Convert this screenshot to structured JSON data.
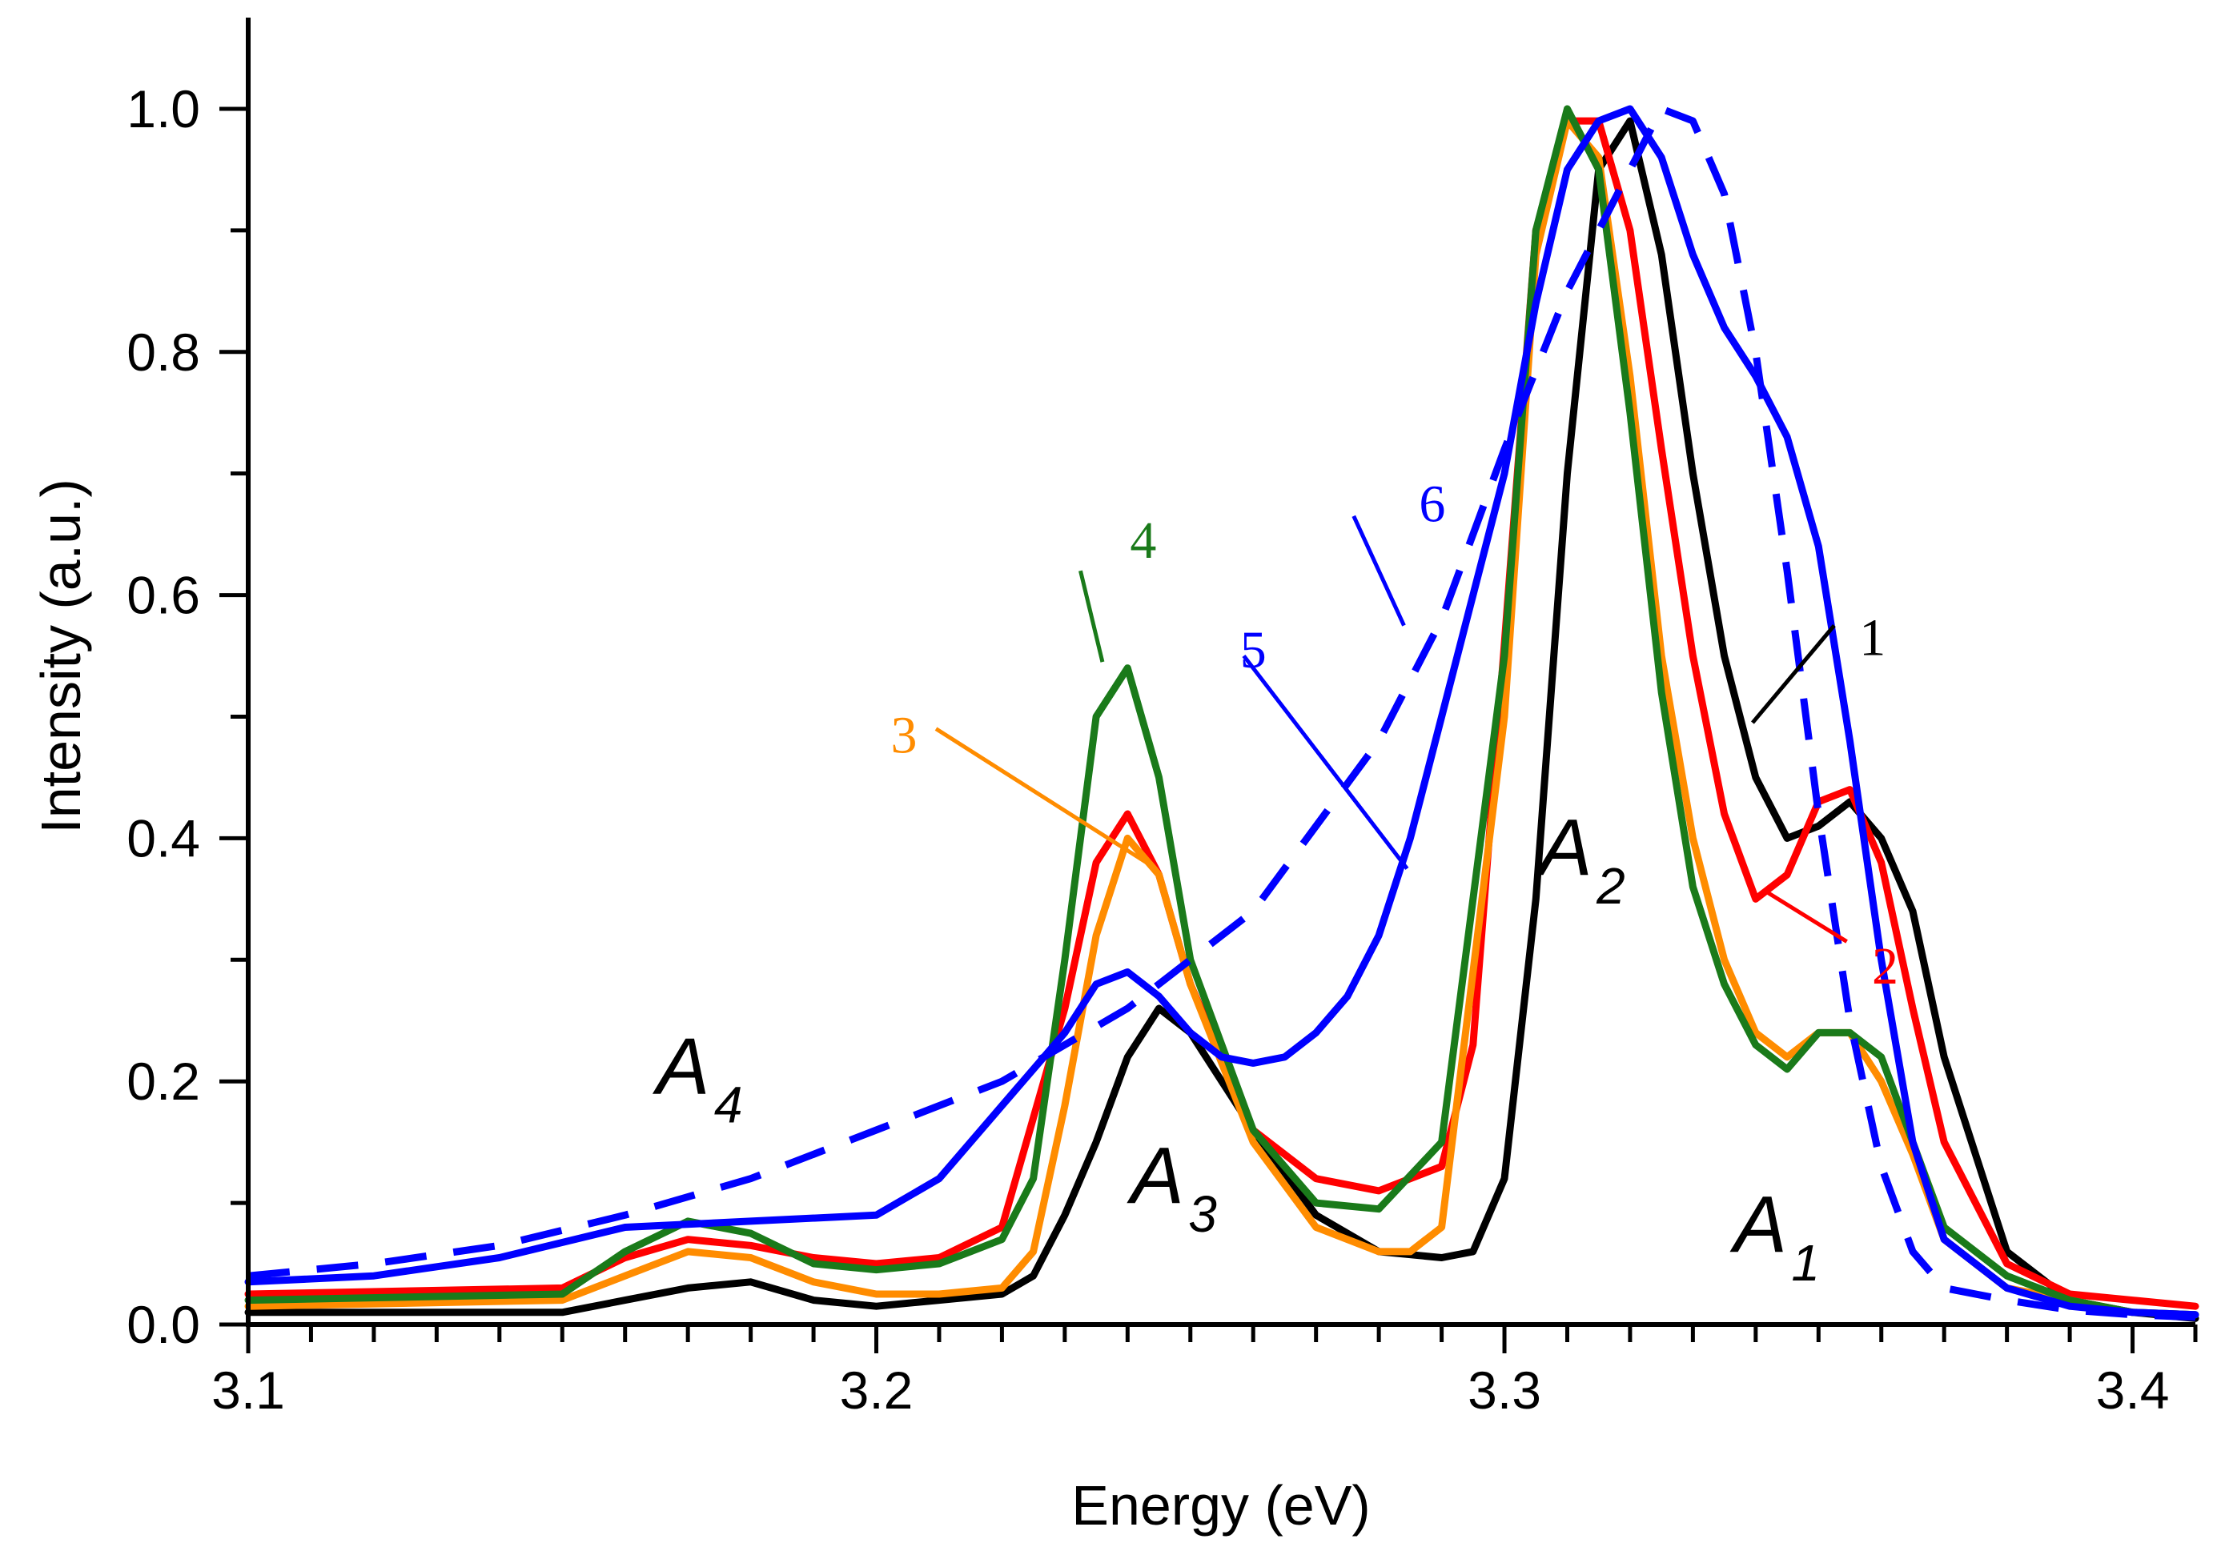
{
  "chart_data": {
    "type": "line",
    "title": "",
    "xlabel": "Energy (eV)",
    "ylabel": "Intensity (a.u.)",
    "xlim": [
      3.1,
      3.41
    ],
    "ylim": [
      0.0,
      1.05
    ],
    "xticks": [
      3.1,
      3.2,
      3.3,
      3.4
    ],
    "xtick_labels": [
      "3.1",
      "3.2",
      "3.3",
      "3.4"
    ],
    "yticks": [
      0.0,
      0.2,
      0.4,
      0.6,
      0.8,
      1.0
    ],
    "ytick_labels": [
      "0.0",
      "0.2",
      "0.4",
      "0.6",
      "0.8",
      "1.0"
    ],
    "grid": false,
    "series": [
      {
        "name": "1",
        "label": "1",
        "color": "#000000",
        "dashed": false,
        "x": [
          3.1,
          3.15,
          3.16,
          3.17,
          3.18,
          3.19,
          3.2,
          3.21,
          3.22,
          3.225,
          3.23,
          3.235,
          3.24,
          3.245,
          3.25,
          3.26,
          3.27,
          3.28,
          3.29,
          3.295,
          3.3,
          3.305,
          3.31,
          3.315,
          3.32,
          3.325,
          3.33,
          3.335,
          3.34,
          3.345,
          3.35,
          3.355,
          3.36,
          3.365,
          3.37,
          3.38,
          3.39,
          3.4,
          3.41
        ],
        "y": [
          0.01,
          0.01,
          0.02,
          0.03,
          0.035,
          0.02,
          0.015,
          0.02,
          0.025,
          0.04,
          0.09,
          0.15,
          0.22,
          0.26,
          0.24,
          0.16,
          0.09,
          0.06,
          0.055,
          0.06,
          0.12,
          0.35,
          0.7,
          0.95,
          0.99,
          0.88,
          0.7,
          0.55,
          0.45,
          0.4,
          0.41,
          0.43,
          0.4,
          0.34,
          0.22,
          0.06,
          0.02,
          0.01,
          0.005
        ]
      },
      {
        "name": "2",
        "label": "2",
        "color": "#ff0000",
        "dashed": false,
        "x": [
          3.1,
          3.15,
          3.16,
          3.17,
          3.18,
          3.19,
          3.2,
          3.21,
          3.22,
          3.23,
          3.235,
          3.24,
          3.245,
          3.25,
          3.26,
          3.27,
          3.28,
          3.29,
          3.295,
          3.3,
          3.305,
          3.31,
          3.315,
          3.32,
          3.325,
          3.33,
          3.335,
          3.34,
          3.345,
          3.35,
          3.355,
          3.36,
          3.365,
          3.37,
          3.38,
          3.39,
          3.4,
          3.41
        ],
        "y": [
          0.025,
          0.03,
          0.055,
          0.07,
          0.065,
          0.055,
          0.05,
          0.055,
          0.08,
          0.26,
          0.38,
          0.42,
          0.37,
          0.28,
          0.16,
          0.12,
          0.11,
          0.13,
          0.23,
          0.56,
          0.9,
          0.99,
          0.99,
          0.9,
          0.72,
          0.55,
          0.42,
          0.35,
          0.37,
          0.43,
          0.44,
          0.38,
          0.26,
          0.15,
          0.05,
          0.025,
          0.02,
          0.015
        ]
      },
      {
        "name": "3",
        "label": "3",
        "color": "#ff8c00",
        "dashed": false,
        "x": [
          3.1,
          3.15,
          3.16,
          3.17,
          3.18,
          3.19,
          3.2,
          3.21,
          3.22,
          3.225,
          3.23,
          3.235,
          3.24,
          3.245,
          3.25,
          3.26,
          3.27,
          3.28,
          3.285,
          3.29,
          3.3,
          3.305,
          3.31,
          3.315,
          3.32,
          3.325,
          3.33,
          3.335,
          3.34,
          3.345,
          3.35,
          3.355,
          3.36,
          3.365,
          3.37,
          3.38,
          3.39,
          3.4,
          3.41
        ],
        "y": [
          0.015,
          0.02,
          0.04,
          0.06,
          0.055,
          0.035,
          0.025,
          0.025,
          0.03,
          0.06,
          0.18,
          0.32,
          0.4,
          0.37,
          0.28,
          0.15,
          0.08,
          0.06,
          0.06,
          0.08,
          0.5,
          0.88,
          0.99,
          0.96,
          0.78,
          0.55,
          0.4,
          0.3,
          0.24,
          0.22,
          0.24,
          0.24,
          0.2,
          0.14,
          0.07,
          0.03,
          0.02,
          0.01,
          0.008
        ]
      },
      {
        "name": "4",
        "label": "4",
        "color": "#1a7a1a",
        "dashed": false,
        "x": [
          3.1,
          3.15,
          3.16,
          3.17,
          3.18,
          3.19,
          3.2,
          3.21,
          3.215,
          3.22,
          3.225,
          3.23,
          3.235,
          3.24,
          3.245,
          3.25,
          3.26,
          3.27,
          3.28,
          3.29,
          3.3,
          3.305,
          3.31,
          3.315,
          3.32,
          3.325,
          3.33,
          3.335,
          3.34,
          3.345,
          3.35,
          3.355,
          3.36,
          3.365,
          3.37,
          3.38,
          3.39,
          3.4,
          3.41
        ],
        "y": [
          0.02,
          0.025,
          0.06,
          0.085,
          0.075,
          0.05,
          0.045,
          0.05,
          0.06,
          0.07,
          0.12,
          0.3,
          0.5,
          0.54,
          0.45,
          0.3,
          0.16,
          0.1,
          0.095,
          0.15,
          0.55,
          0.9,
          1.0,
          0.95,
          0.75,
          0.52,
          0.36,
          0.28,
          0.23,
          0.21,
          0.24,
          0.24,
          0.22,
          0.15,
          0.08,
          0.04,
          0.02,
          0.01,
          0.008
        ]
      },
      {
        "name": "5",
        "label": "5",
        "color": "#0000ff",
        "dashed": false,
        "x": [
          3.1,
          3.12,
          3.14,
          3.16,
          3.18,
          3.2,
          3.21,
          3.22,
          3.23,
          3.235,
          3.24,
          3.245,
          3.25,
          3.255,
          3.26,
          3.265,
          3.27,
          3.275,
          3.28,
          3.285,
          3.29,
          3.3,
          3.305,
          3.31,
          3.315,
          3.32,
          3.325,
          3.33,
          3.335,
          3.34,
          3.345,
          3.35,
          3.355,
          3.36,
          3.365,
          3.37,
          3.38,
          3.39,
          3.4,
          3.41
        ],
        "y": [
          0.035,
          0.04,
          0.055,
          0.08,
          0.085,
          0.09,
          0.12,
          0.18,
          0.24,
          0.28,
          0.29,
          0.27,
          0.24,
          0.22,
          0.215,
          0.22,
          0.24,
          0.27,
          0.32,
          0.4,
          0.5,
          0.7,
          0.84,
          0.95,
          0.99,
          1.0,
          0.96,
          0.88,
          0.82,
          0.78,
          0.73,
          0.64,
          0.48,
          0.3,
          0.15,
          0.07,
          0.03,
          0.015,
          0.01,
          0.008
        ]
      },
      {
        "name": "6",
        "label": "6",
        "color": "#0000ff",
        "dashed": true,
        "x": [
          3.1,
          3.12,
          3.14,
          3.16,
          3.18,
          3.2,
          3.22,
          3.24,
          3.26,
          3.28,
          3.29,
          3.3,
          3.31,
          3.32,
          3.325,
          3.33,
          3.335,
          3.34,
          3.345,
          3.35,
          3.355,
          3.36,
          3.365,
          3.37,
          3.38,
          3.39,
          3.4,
          3.41
        ],
        "y": [
          0.04,
          0.05,
          0.065,
          0.09,
          0.12,
          0.16,
          0.2,
          0.26,
          0.34,
          0.48,
          0.58,
          0.72,
          0.85,
          0.95,
          1.0,
          0.99,
          0.93,
          0.8,
          0.62,
          0.42,
          0.25,
          0.13,
          0.06,
          0.03,
          0.02,
          0.012,
          0.008,
          0.006
        ]
      }
    ],
    "annotations": [
      {
        "text": "1",
        "color": "#000000"
      },
      {
        "text": "2",
        "color": "#ff0000"
      },
      {
        "text": "3",
        "color": "#ff8c00"
      },
      {
        "text": "4",
        "color": "#1a7a1a"
      },
      {
        "text": "5",
        "color": "#0000ff"
      },
      {
        "text": "6",
        "color": "#0000ff"
      }
    ],
    "peak_labels": [
      {
        "main": "A",
        "sub": "1"
      },
      {
        "main": "A",
        "sub": "2"
      },
      {
        "main": "A",
        "sub": "3"
      },
      {
        "main": "A",
        "sub": "4"
      }
    ]
  }
}
